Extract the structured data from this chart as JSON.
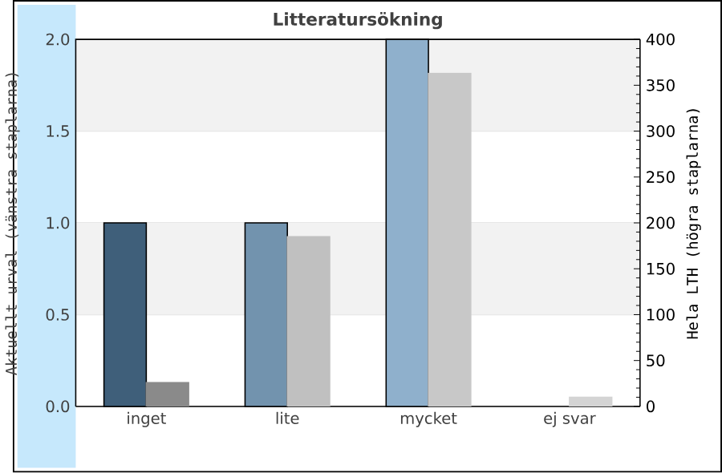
{
  "chart_data": {
    "type": "bar",
    "title": "Litteratursökning",
    "ylabel": "Aktuellt urval (vänstra staplarna)",
    "y2label": "Hela LTH (högra staplarna)",
    "categories": [
      "inget",
      "lite",
      "mycket",
      "ej svar"
    ],
    "series": [
      {
        "colors": [
          "#3f5f7a",
          "#7293ae",
          "#8fb0cc",
          "#a8c4dc"
        ],
        "values": [
          1,
          1,
          2,
          null
        ]
      },
      {
        "axis": "y2",
        "colors": [
          "#8a8a8a",
          "#c0c0c0",
          "#c8c8c8",
          "#d4d4d4"
        ],
        "values": [
          26,
          185,
          363,
          10
        ]
      }
    ],
    "ylim": [
      0,
      2
    ],
    "yticks": [
      {
        "value": 0,
        "label": "0.0"
      },
      0.5,
      {
        "value": 1,
        "label": "1.0"
      },
      1.5,
      {
        "value": 2,
        "label": "2.0"
      }
    ],
    "y2lim": [
      0,
      400
    ],
    "y2ticks": [
      0,
      50,
      100,
      150,
      200,
      250,
      300,
      350,
      400
    ],
    "grid": "y"
  }
}
